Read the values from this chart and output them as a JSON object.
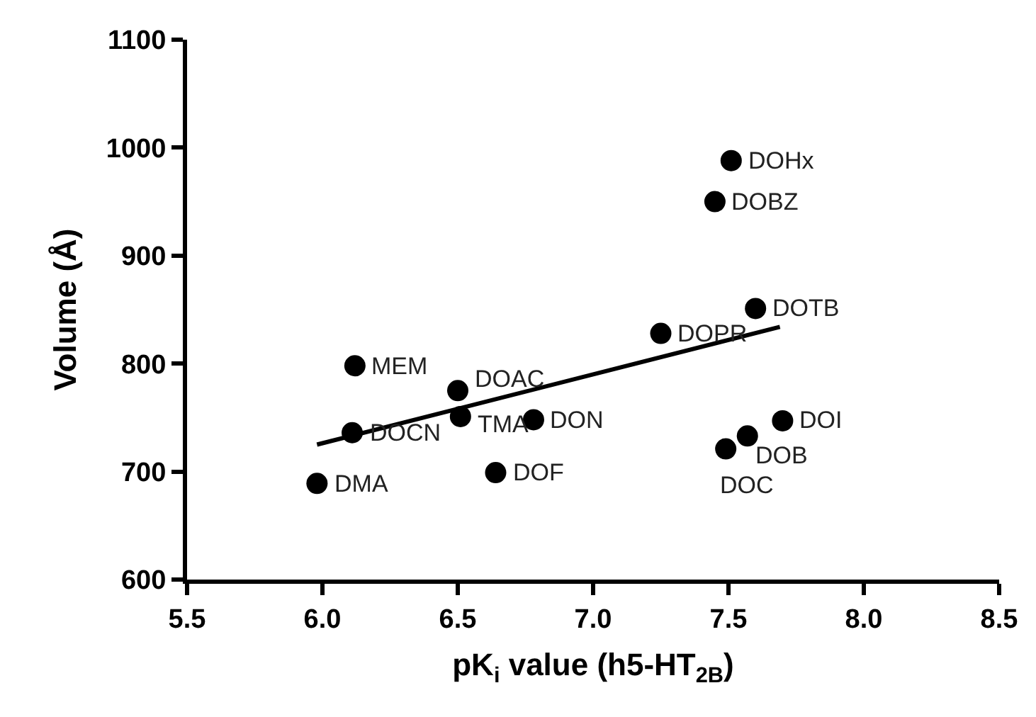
{
  "chart_data": {
    "type": "scatter",
    "xlabel": "pK$_{i}$ value (h5-HT$_{2B}$)",
    "ylabel": "Volume (Å)",
    "series": [
      {
        "color": "#000000",
        "marker": "circle",
        "x": [
          5.98,
          6.11,
          6.12,
          6.5,
          6.51,
          6.64,
          6.78,
          7.25,
          7.45,
          7.51,
          7.6,
          7.7,
          7.57,
          7.49
        ],
        "values": [
          689,
          736,
          798,
          775,
          751,
          699,
          748,
          828,
          950,
          988,
          851,
          747,
          733,
          721
        ]
      },
      {
        "type": "line",
        "color": "#000000",
        "marker": "none",
        "line_style": "solid",
        "x": [
          5.98,
          7.69
        ],
        "values": [
          725,
          834
        ]
      }
    ],
    "annotations": [
      {
        "text": "DMA",
        "x": 5.98,
        "y": 689
      },
      {
        "text": "DOCN",
        "x": 6.11,
        "y": 736
      },
      {
        "text": "MEM",
        "x": 6.12,
        "y": 798
      },
      {
        "text": "DOAC",
        "x": 6.5,
        "y": 775
      },
      {
        "text": "TMA",
        "x": 6.51,
        "y": 751
      },
      {
        "text": "DOF",
        "x": 6.64,
        "y": 699
      },
      {
        "text": "DON",
        "x": 6.78,
        "y": 748
      },
      {
        "text": "DOPR",
        "x": 7.25,
        "y": 828
      },
      {
        "text": "DOBZ",
        "x": 7.45,
        "y": 950
      },
      {
        "text": "DOHx",
        "x": 7.51,
        "y": 988
      },
      {
        "text": "DOTB",
        "x": 7.6,
        "y": 851
      },
      {
        "text": "DOI",
        "x": 7.7,
        "y": 747
      },
      {
        "text": "DOB",
        "x": 7.57,
        "y": 733
      },
      {
        "text": "DOC",
        "x": 7.49,
        "y": 721
      }
    ],
    "xlim": [
      5.5,
      8.5
    ],
    "xticks": [
      5.5,
      {
        "value": 6,
        "label": "6.0"
      },
      6.5,
      {
        "value": 7,
        "label": "7.0"
      },
      7.5,
      {
        "value": 8,
        "label": "8.0"
      },
      8.5
    ],
    "ylim": [
      600,
      1100
    ],
    "yticks": [
      600,
      700,
      800,
      900,
      1000,
      1100
    ]
  }
}
